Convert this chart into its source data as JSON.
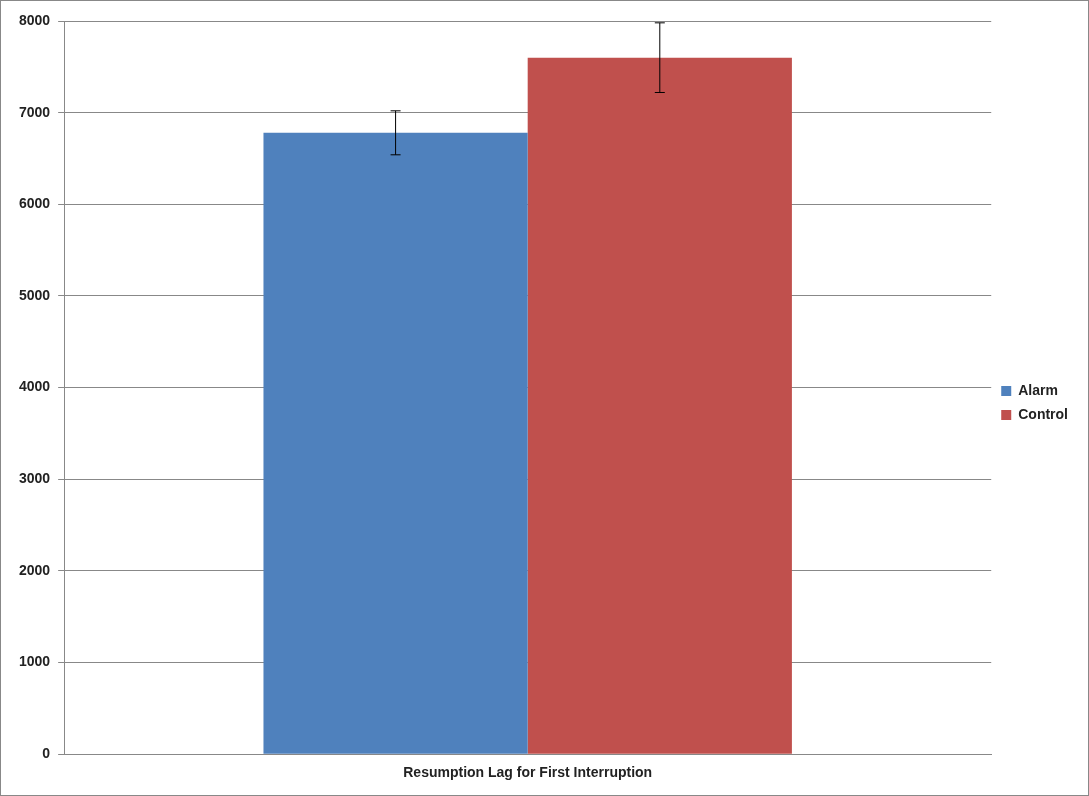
{
  "chart_data": {
    "type": "bar",
    "categories": [
      "Resumption Lag for First Interruption"
    ],
    "series": [
      {
        "name": "Alarm",
        "color": "#4f81bd",
        "values": [
          6780
        ],
        "errors": [
          240
        ]
      },
      {
        "name": "Control",
        "color": "#c0504d",
        "values": [
          7600
        ],
        "errors": [
          380
        ]
      }
    ],
    "ylim": [
      0,
      8000
    ],
    "yticks": [
      0,
      1000,
      2000,
      3000,
      4000,
      5000,
      6000,
      7000,
      8000
    ],
    "grid": "y",
    "legend": "right"
  }
}
